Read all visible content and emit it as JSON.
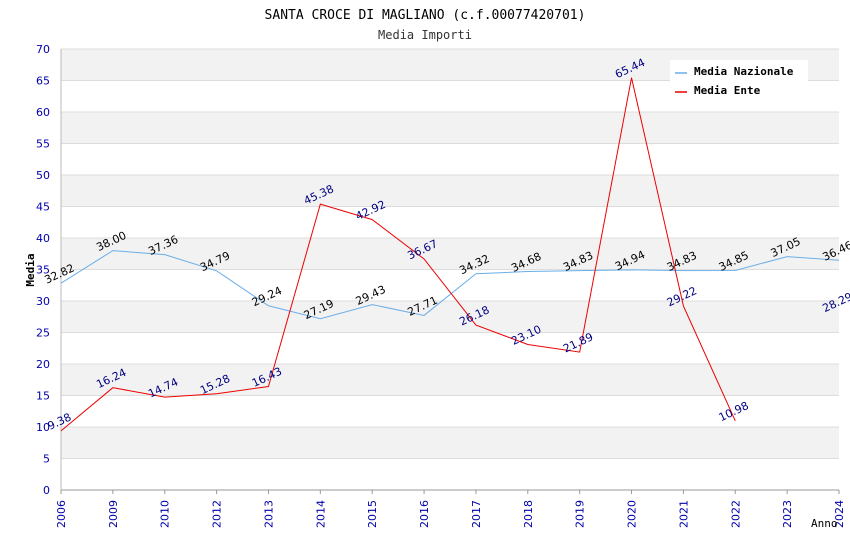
{
  "chart_data": {
    "type": "line",
    "title": "SANTA CROCE DI MAGLIANO (c.f.00077420701)",
    "subtitle": "Media Importi",
    "xlabel": "Anno",
    "ylabel": "Media",
    "categories": [
      "2006",
      "2009",
      "2010",
      "2012",
      "2013",
      "2014",
      "2015",
      "2016",
      "2017",
      "2018",
      "2019",
      "2020",
      "2021",
      "2022",
      "2023",
      "2024"
    ],
    "ylim": [
      0,
      70
    ],
    "yticks": [
      0,
      5,
      10,
      15,
      20,
      25,
      30,
      35,
      40,
      45,
      50,
      55,
      60,
      65,
      70
    ],
    "grid": true,
    "legend_position": "top-right",
    "series": [
      {
        "name": "Media Nazionale",
        "color": "#6aaee8",
        "label_color": "#000000",
        "values": [
          32.82,
          38.0,
          37.36,
          34.79,
          29.24,
          27.19,
          29.43,
          27.71,
          34.32,
          34.68,
          34.83,
          34.94,
          34.83,
          34.85,
          37.05,
          36.46
        ],
        "labels": [
          "32.82",
          "38.00",
          "37.36",
          "34.79",
          "29.24",
          "27.19",
          "29.43",
          "27.71",
          "34.32",
          "34.68",
          "34.83",
          "34.94",
          "34.83",
          "34.85",
          "37.05",
          "36.46"
        ]
      },
      {
        "name": "Media Ente",
        "color": "#ee0000",
        "label_color": "#000080",
        "values": [
          9.38,
          16.24,
          14.74,
          15.28,
          16.43,
          45.38,
          42.92,
          36.67,
          26.18,
          23.1,
          21.89,
          65.44,
          29.22,
          10.98,
          null,
          28.29
        ],
        "labels": [
          "9.38",
          "16.24",
          "14.74",
          "15.28",
          "16.43",
          "45.38",
          "42.92",
          "36.67",
          "26.18",
          "23.10",
          "21.89",
          "65.44",
          "29.22",
          "10.98",
          "",
          "28.29"
        ]
      }
    ]
  },
  "colors": {
    "band": "#f2f2f2",
    "gridline": "#dddddd",
    "axis_tick_label": "#0000aa",
    "title": "#000000"
  }
}
